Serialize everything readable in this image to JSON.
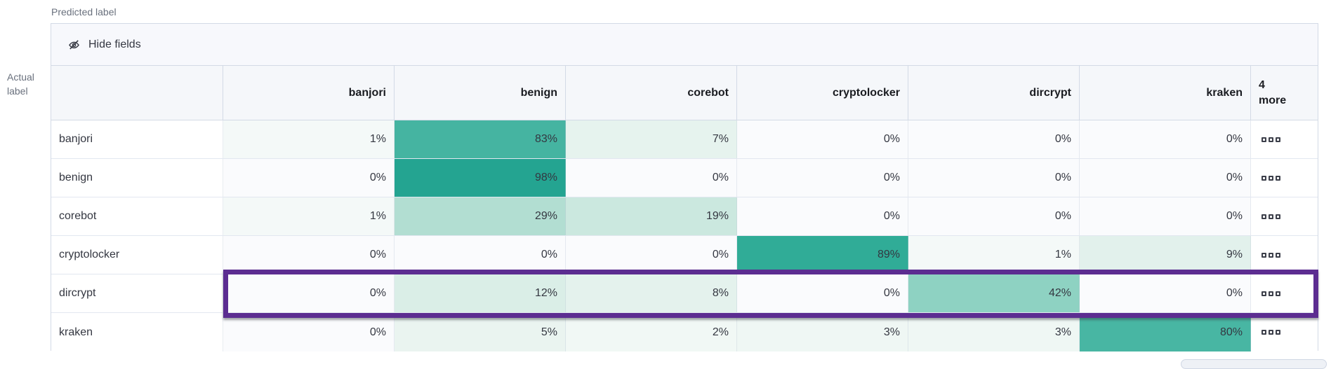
{
  "axis": {
    "predicted": "Predicted label",
    "actual_line1": "Actual",
    "actual_line2": "label"
  },
  "toolbar": {
    "hide_fields_label": "Hide fields",
    "icon": "eye-slash-icon"
  },
  "matrix": {
    "columns": [
      "banjori",
      "benign",
      "corebot",
      "cryptolocker",
      "dircrypt",
      "kraken"
    ],
    "more_header": {
      "count": "4",
      "label": "more"
    },
    "actions_icon": "boxes-horizontal-icon",
    "highlighted_row": "dircrypt",
    "rows": [
      {
        "label": "banjori",
        "cells": [
          {
            "v": "1%",
            "c": "#f4f9f8"
          },
          {
            "v": "83%",
            "c": "#45b4a1"
          },
          {
            "v": "7%",
            "c": "#e6f3ee"
          },
          {
            "v": "0%",
            "c": "#fafbfd"
          },
          {
            "v": "0%",
            "c": "#fafbfd"
          },
          {
            "v": "0%",
            "c": "#fafbfd"
          }
        ]
      },
      {
        "label": "benign",
        "cells": [
          {
            "v": "0%",
            "c": "#fafbfd"
          },
          {
            "v": "98%",
            "c": "#24a491"
          },
          {
            "v": "0%",
            "c": "#fafbfd"
          },
          {
            "v": "0%",
            "c": "#fafbfd"
          },
          {
            "v": "0%",
            "c": "#fafbfd"
          },
          {
            "v": "0%",
            "c": "#fafbfd"
          }
        ]
      },
      {
        "label": "corebot",
        "cells": [
          {
            "v": "1%",
            "c": "#f4f9f8"
          },
          {
            "v": "29%",
            "c": "#b2ded2"
          },
          {
            "v": "19%",
            "c": "#cbe8df"
          },
          {
            "v": "0%",
            "c": "#fafbfd"
          },
          {
            "v": "0%",
            "c": "#fafbfd"
          },
          {
            "v": "0%",
            "c": "#fafbfd"
          }
        ]
      },
      {
        "label": "cryptolocker",
        "cells": [
          {
            "v": "0%",
            "c": "#fafbfd"
          },
          {
            "v": "0%",
            "c": "#fafbfd"
          },
          {
            "v": "0%",
            "c": "#fafbfd"
          },
          {
            "v": "89%",
            "c": "#30ac97"
          },
          {
            "v": "1%",
            "c": "#f4f9f8"
          },
          {
            "v": "9%",
            "c": "#e2f1ec"
          }
        ]
      },
      {
        "label": "dircrypt",
        "cells": [
          {
            "v": "0%",
            "c": "#fafbfd"
          },
          {
            "v": "12%",
            "c": "#daeee7"
          },
          {
            "v": "8%",
            "c": "#e4f2ed"
          },
          {
            "v": "0%",
            "c": "#fafbfd"
          },
          {
            "v": "42%",
            "c": "#8ed2c2"
          },
          {
            "v": "0%",
            "c": "#fafbfd"
          }
        ]
      },
      {
        "label": "kraken",
        "cells": [
          {
            "v": "0%",
            "c": "#fafbfd"
          },
          {
            "v": "5%",
            "c": "#eaf4f0"
          },
          {
            "v": "2%",
            "c": "#f1f8f5"
          },
          {
            "v": "3%",
            "c": "#eff7f4"
          },
          {
            "v": "3%",
            "c": "#eff7f4"
          },
          {
            "v": "80%",
            "c": "#48b6a3"
          }
        ]
      }
    ]
  },
  "colors": {
    "highlight_border": "#5c2d91",
    "heat_max": "#24a491",
    "header_bg": "#f5f7fa",
    "toolbar_bg": "#f7f8fc",
    "table_border": "#d3dae6",
    "text": "#343741",
    "muted_text": "#69707d"
  }
}
